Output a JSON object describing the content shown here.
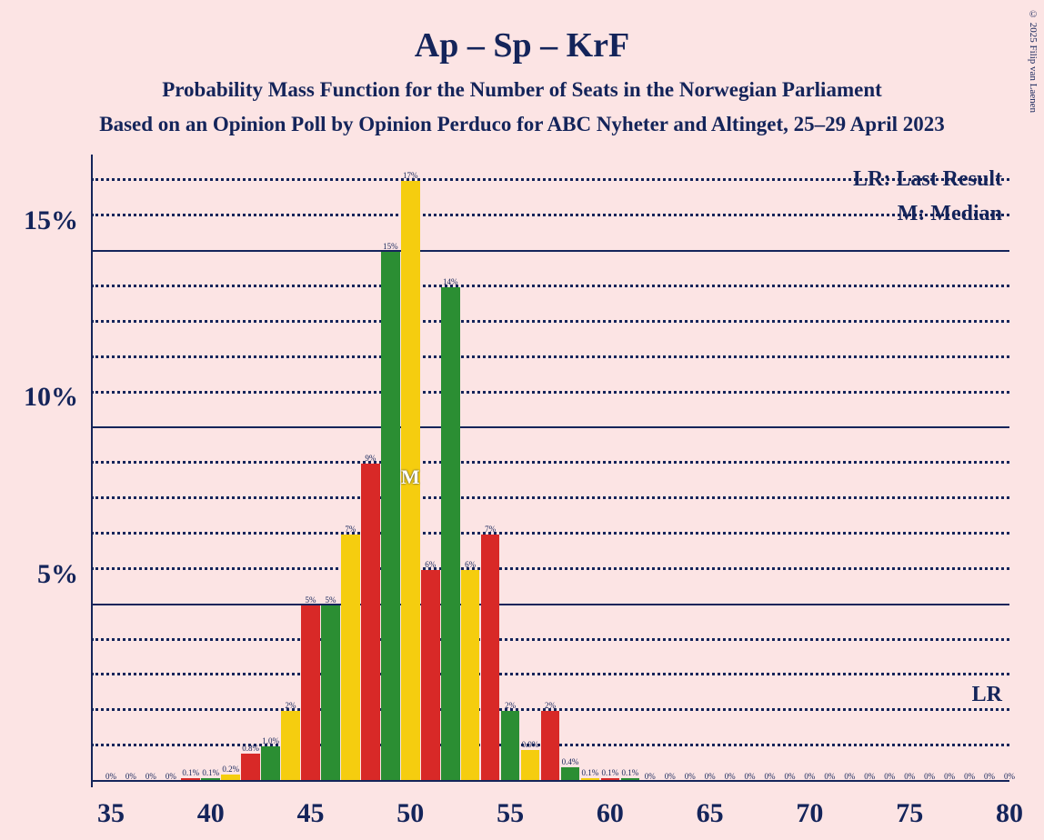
{
  "title": "Ap – Sp – KrF",
  "title_fontsize": 38,
  "subtitle1": "Probability Mass Function for the Number of Seats in the Norwegian Parliament",
  "subtitle2": "Based on an Opinion Poll by Opinion Perduco for ABC Nyheter and Altinget, 25–29 April 2023",
  "subtitle_fontsize": 23,
  "copyright": "© 2025 Filip van Laenen",
  "background_color": "#fce4e4",
  "text_color": "#14245a",
  "grid_color": "#14245a",
  "chart": {
    "type": "bar",
    "ylim": [
      0,
      17.5
    ],
    "y_major_ticks": [
      5,
      10,
      15
    ],
    "y_minor_step": 1,
    "xlim": [
      34,
      80
    ],
    "x_major_ticks": [
      35,
      40,
      45,
      50,
      55,
      60,
      65,
      70,
      75,
      80
    ],
    "bar_colors_cycle": [
      "#d82927",
      "#2b8e33",
      "#f5cd0f"
    ],
    "bar_width_ratio": 0.94,
    "median_x": 50,
    "legend": {
      "lr": "LR: Last Result",
      "m": "M: Median",
      "lr_short": "LR",
      "lr_short_x": 80
    },
    "bars": [
      {
        "x": 35,
        "v": 0,
        "label": "0%"
      },
      {
        "x": 36,
        "v": 0,
        "label": "0%"
      },
      {
        "x": 37,
        "v": 0,
        "label": "0%"
      },
      {
        "x": 38,
        "v": 0,
        "label": "0%"
      },
      {
        "x": 39,
        "v": 0.1,
        "label": "0.1%"
      },
      {
        "x": 40,
        "v": 0.1,
        "label": "0.1%"
      },
      {
        "x": 41,
        "v": 0.2,
        "label": "0.2%"
      },
      {
        "x": 42,
        "v": 0.8,
        "label": "0.8%"
      },
      {
        "x": 43,
        "v": 1.0,
        "label": "1.0%"
      },
      {
        "x": 44,
        "v": 2,
        "label": "2%"
      },
      {
        "x": 45,
        "v": 5,
        "label": "5%"
      },
      {
        "x": 46,
        "v": 5,
        "label": "5%"
      },
      {
        "x": 47,
        "v": 7,
        "label": "7%"
      },
      {
        "x": 48,
        "v": 9,
        "label": "9%"
      },
      {
        "x": 49,
        "v": 15,
        "label": "15%"
      },
      {
        "x": 50,
        "v": 17,
        "label": "17%"
      },
      {
        "x": 51,
        "v": 6,
        "label": "6%"
      },
      {
        "x": 52,
        "v": 14,
        "label": "14%"
      },
      {
        "x": 53,
        "v": 6,
        "label": "6%"
      },
      {
        "x": 54,
        "v": 7,
        "label": "7%"
      },
      {
        "x": 55,
        "v": 2,
        "label": "2%"
      },
      {
        "x": 56,
        "v": 0.9,
        "label": "0.9%"
      },
      {
        "x": 57,
        "v": 2,
        "label": "2%"
      },
      {
        "x": 58,
        "v": 0.4,
        "label": "0.4%"
      },
      {
        "x": 59,
        "v": 0.1,
        "label": "0.1%"
      },
      {
        "x": 60,
        "v": 0.1,
        "label": "0.1%"
      },
      {
        "x": 61,
        "v": 0.1,
        "label": "0.1%"
      },
      {
        "x": 62,
        "v": 0,
        "label": "0%"
      },
      {
        "x": 63,
        "v": 0,
        "label": "0%"
      },
      {
        "x": 64,
        "v": 0,
        "label": "0%"
      },
      {
        "x": 65,
        "v": 0,
        "label": "0%"
      },
      {
        "x": 66,
        "v": 0,
        "label": "0%"
      },
      {
        "x": 67,
        "v": 0,
        "label": "0%"
      },
      {
        "x": 68,
        "v": 0,
        "label": "0%"
      },
      {
        "x": 69,
        "v": 0,
        "label": "0%"
      },
      {
        "x": 70,
        "v": 0,
        "label": "0%"
      },
      {
        "x": 71,
        "v": 0,
        "label": "0%"
      },
      {
        "x": 72,
        "v": 0,
        "label": "0%"
      },
      {
        "x": 73,
        "v": 0,
        "label": "0%"
      },
      {
        "x": 74,
        "v": 0,
        "label": "0%"
      },
      {
        "x": 75,
        "v": 0,
        "label": "0%"
      },
      {
        "x": 76,
        "v": 0,
        "label": "0%"
      },
      {
        "x": 77,
        "v": 0,
        "label": "0%"
      },
      {
        "x": 78,
        "v": 0,
        "label": "0%"
      },
      {
        "x": 79,
        "v": 0,
        "label": "0%"
      },
      {
        "x": 80,
        "v": 0,
        "label": "0%"
      }
    ]
  }
}
